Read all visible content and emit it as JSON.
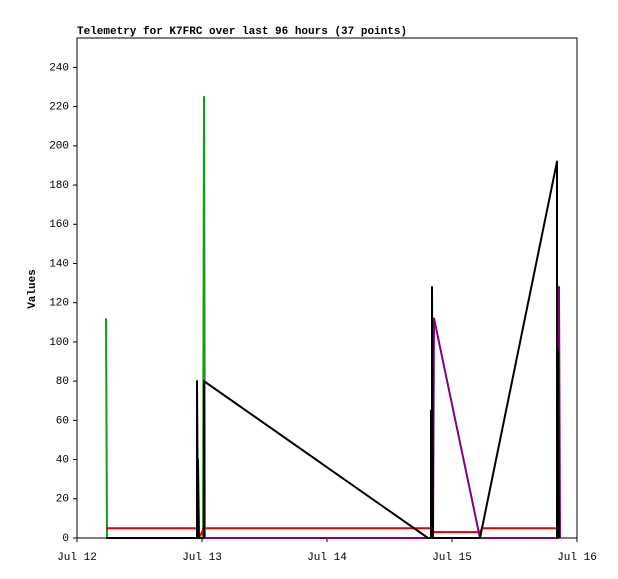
{
  "chart_data": {
    "type": "line",
    "title": "Telemetry for K7FRC over last 96 hours (37 points)",
    "y_label": "Values",
    "xlim": [
      0,
      4
    ],
    "xticks": [
      {
        "value": 0,
        "label": "Jul 12"
      },
      {
        "value": 1,
        "label": "Jul 13"
      },
      {
        "value": 2,
        "label": "Jul 14"
      },
      {
        "value": 3,
        "label": "Jul 15"
      },
      {
        "value": 4,
        "label": "Jul 16"
      }
    ],
    "ylim": [
      0,
      255
    ],
    "yticks": [
      0,
      20,
      40,
      60,
      80,
      100,
      120,
      140,
      160,
      180,
      200,
      220,
      240
    ],
    "grid": false,
    "series": [
      {
        "color": "#1a9a1a",
        "x": [
          0.232,
          0.24,
          1.008,
          1.016,
          1.024
        ],
        "values": [
          112,
          0,
          0,
          225,
          0
        ]
      },
      {
        "color": "#e00000",
        "x": [
          0.232,
          0.96,
          0.976,
          1.016,
          2.84,
          2.848,
          3.224,
          3.24,
          3.84
        ],
        "values": [
          5,
          5,
          0,
          5,
          5,
          3,
          3,
          5,
          5
        ]
      },
      {
        "color": "#800080",
        "x": [
          1.016,
          2.824,
          2.848,
          2.856,
          3.224,
          3.848,
          3.856,
          3.864
        ],
        "values": [
          0,
          0,
          0,
          112,
          0,
          0,
          128,
          0
        ]
      },
      {
        "color": "#000000",
        "x": [
          0.232,
          0.96,
          0.96,
          0.968,
          0.968,
          0.976,
          1.016,
          1.016,
          2.808,
          2.832,
          2.832,
          2.84,
          2.84,
          2.848,
          3.224,
          3.84,
          3.84,
          3.848,
          3.848,
          3.856
        ],
        "values": [
          0,
          0,
          80,
          0,
          40,
          0,
          0,
          80,
          0,
          0,
          65,
          0,
          128,
          0,
          0,
          192,
          0,
          0,
          96,
          0
        ]
      }
    ]
  }
}
